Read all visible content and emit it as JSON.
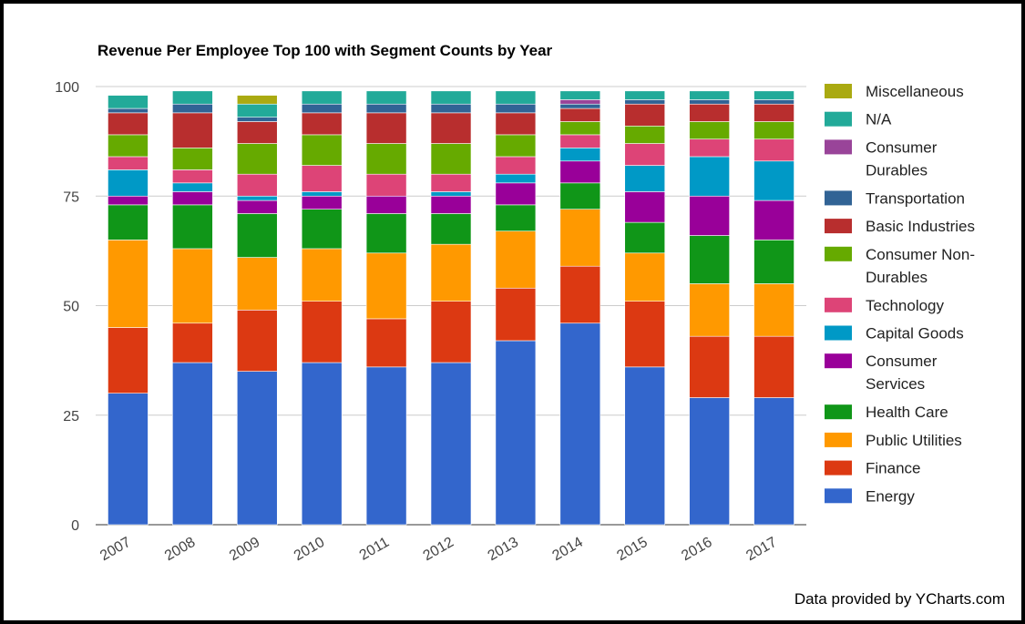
{
  "chart_data": {
    "type": "bar",
    "stacked": true,
    "title": "Revenue Per Employee Top 100 with Segment Counts by Year",
    "xlabel": "",
    "ylabel": "",
    "ylim": [
      0,
      100
    ],
    "yticks": [
      "0",
      "25",
      "50",
      "75",
      "100"
    ],
    "grid": true,
    "legend_position": "right",
    "categories": [
      "2007",
      "2008",
      "2009",
      "2010",
      "2011",
      "2012",
      "2013",
      "2014",
      "2015",
      "2016",
      "2017"
    ],
    "series": [
      {
        "name": "Energy",
        "color": "#3366cc",
        "values": [
          30,
          37,
          35,
          37,
          36,
          37,
          42,
          46,
          36,
          29,
          29
        ]
      },
      {
        "name": "Finance",
        "color": "#dc3912",
        "values": [
          15,
          9,
          14,
          14,
          11,
          14,
          12,
          13,
          15,
          14,
          14
        ]
      },
      {
        "name": "Public Utilities",
        "color": "#ff9900",
        "values": [
          20,
          17,
          12,
          12,
          15,
          13,
          13,
          13,
          11,
          12,
          12
        ]
      },
      {
        "name": "Health Care",
        "color": "#109618",
        "values": [
          8,
          10,
          10,
          9,
          9,
          7,
          6,
          6,
          7,
          11,
          10
        ]
      },
      {
        "name": "Consumer Services",
        "color": "#990099",
        "values": [
          2,
          3,
          3,
          3,
          4,
          4,
          5,
          5,
          7,
          9,
          9
        ]
      },
      {
        "name": "Capital Goods",
        "color": "#0099c6",
        "values": [
          6,
          2,
          1,
          1,
          0,
          1,
          2,
          3,
          6,
          9,
          9
        ]
      },
      {
        "name": "Technology",
        "color": "#dd4477",
        "values": [
          3,
          3,
          5,
          6,
          5,
          4,
          4,
          3,
          5,
          4,
          5
        ]
      },
      {
        "name": "Consumer Non-Durables",
        "color": "#66aa00",
        "values": [
          5,
          5,
          7,
          7,
          7,
          7,
          5,
          3,
          4,
          4,
          4
        ]
      },
      {
        "name": "Basic Industries",
        "color": "#b82e2e",
        "values": [
          5,
          8,
          5,
          5,
          7,
          7,
          5,
          3,
          5,
          4,
          4
        ]
      },
      {
        "name": "Transportation",
        "color": "#316395",
        "values": [
          1,
          2,
          1,
          2,
          2,
          2,
          2,
          1,
          1,
          1,
          1
        ]
      },
      {
        "name": "Consumer Durables",
        "color": "#994499",
        "values": [
          0,
          0,
          0,
          0,
          0,
          0,
          0,
          1,
          0,
          0,
          0
        ]
      },
      {
        "name": "N/A",
        "color": "#22aa99",
        "values": [
          3,
          3,
          3,
          3,
          3,
          3,
          3,
          2,
          2,
          2,
          2
        ]
      },
      {
        "name": "Miscellaneous",
        "color": "#aaaa11",
        "values": [
          0,
          0,
          2,
          0,
          0,
          0,
          0,
          0,
          0,
          0,
          0
        ]
      }
    ],
    "legend": [
      {
        "label_lines": [
          "Miscellaneous"
        ],
        "color": "#aaaa11"
      },
      {
        "label_lines": [
          "N/A"
        ],
        "color": "#22aa99"
      },
      {
        "label_lines": [
          "Consumer",
          "Durables"
        ],
        "color": "#994499"
      },
      {
        "label_lines": [
          "Transportation"
        ],
        "color": "#316395"
      },
      {
        "label_lines": [
          "Basic Industries"
        ],
        "color": "#b82e2e"
      },
      {
        "label_lines": [
          "Consumer Non-",
          "Durables"
        ],
        "color": "#66aa00"
      },
      {
        "label_lines": [
          "Technology"
        ],
        "color": "#dd4477"
      },
      {
        "label_lines": [
          "Capital Goods"
        ],
        "color": "#0099c6"
      },
      {
        "label_lines": [
          "Consumer",
          "Services"
        ],
        "color": "#990099"
      },
      {
        "label_lines": [
          "Health Care"
        ],
        "color": "#109618"
      },
      {
        "label_lines": [
          "Public Utilities"
        ],
        "color": "#ff9900"
      },
      {
        "label_lines": [
          "Finance"
        ],
        "color": "#dc3912"
      },
      {
        "label_lines": [
          "Energy"
        ],
        "color": "#3366cc"
      }
    ]
  },
  "footer": {
    "credit": "Data provided by YCharts.com"
  }
}
